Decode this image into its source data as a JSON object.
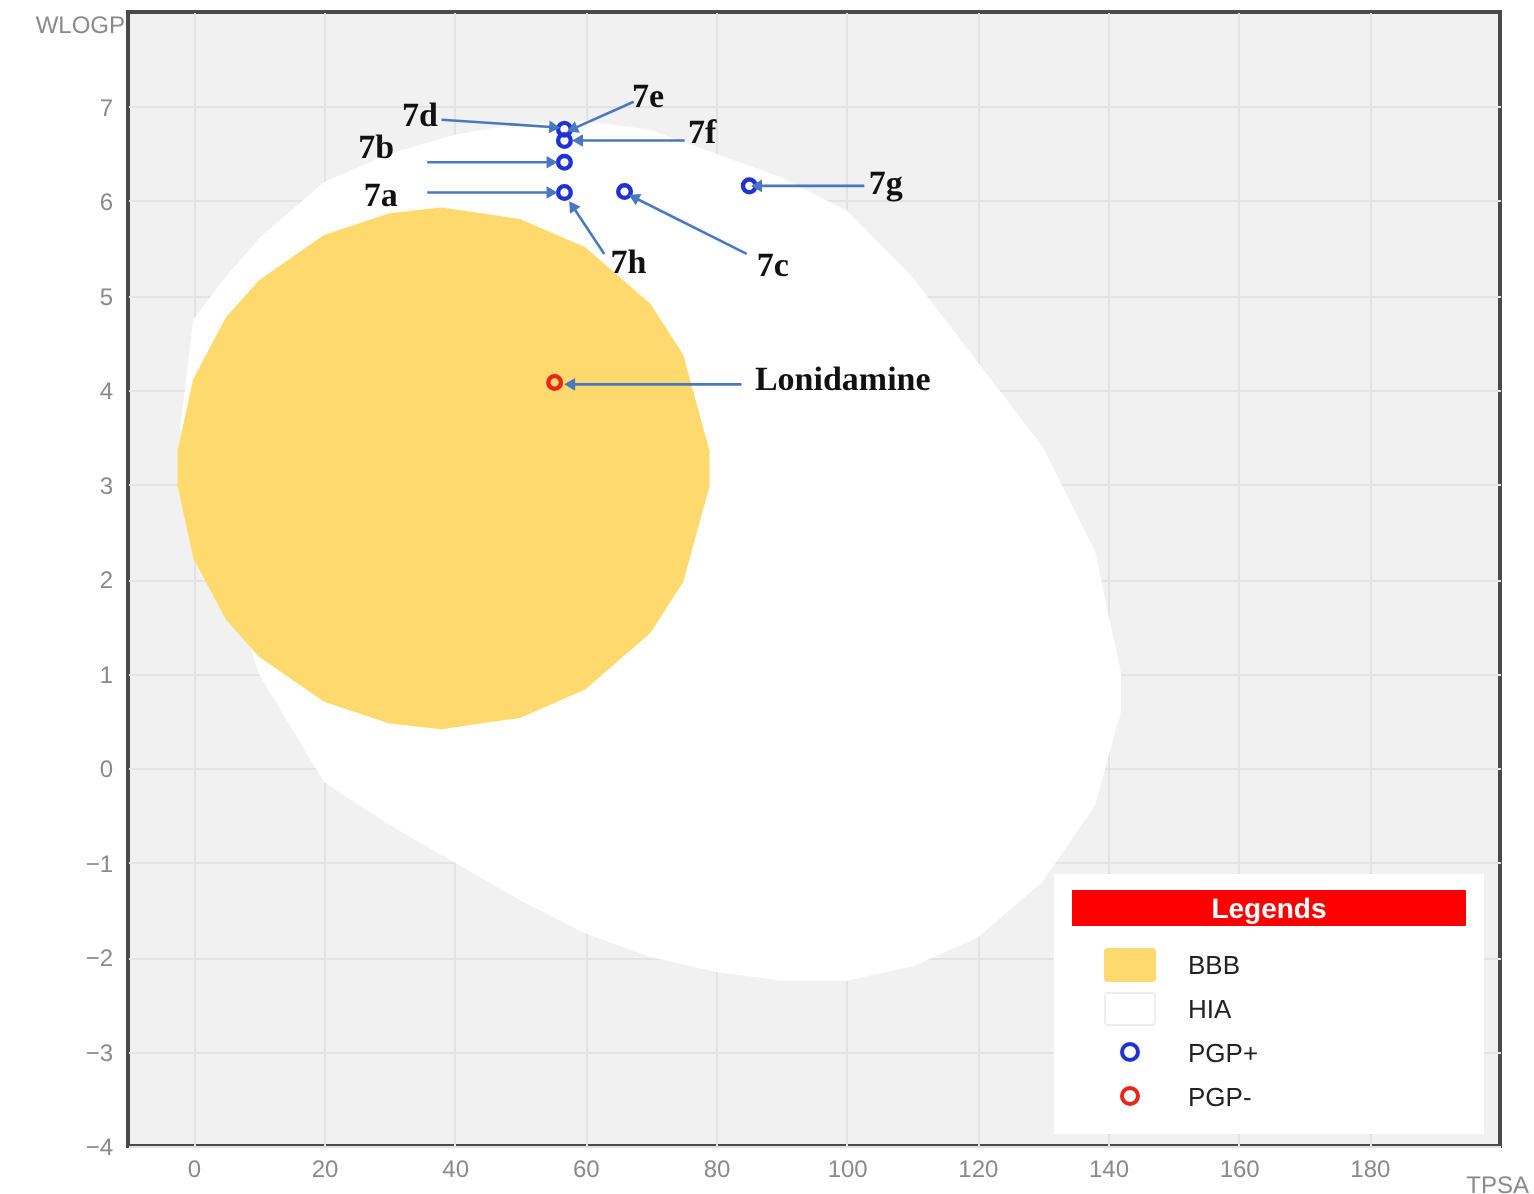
{
  "chart_data": {
    "type": "scatter",
    "xlabel": "TPSA",
    "ylabel": "WLOGP",
    "legend_title": "Legends",
    "xlim": [
      -10,
      200
    ],
    "ylim": [
      -4,
      8
    ],
    "xticks": [
      0,
      20,
      40,
      60,
      80,
      100,
      120,
      140,
      160,
      180
    ],
    "yticks": [
      -4,
      -3,
      -2,
      -1,
      0,
      1,
      2,
      3,
      4,
      5,
      6,
      7
    ],
    "grid": true,
    "legend": "bottom right",
    "series": [
      {
        "type": "area",
        "name": "BBB",
        "color": "#fdd96e",
        "x": [
          -2.4,
          0,
          5,
          10,
          20,
          30,
          38,
          50,
          60,
          70,
          75,
          79,
          79,
          75,
          70,
          60,
          50,
          38,
          30,
          20,
          10,
          5,
          0,
          -2.4
        ],
        "values": [
          3.36,
          4.12,
          4.77,
          5.16,
          5.64,
          5.87,
          5.93,
          5.81,
          5.51,
          4.91,
          4.37,
          3.36,
          2.98,
          1.97,
          1.43,
          0.83,
          0.53,
          0.41,
          0.47,
          0.7,
          1.18,
          1.57,
          2.22,
          2.98
        ]
      },
      {
        "type": "area",
        "name": "HIA",
        "color": "#ffffff",
        "x": [
          -2,
          0,
          5,
          10,
          20,
          30,
          40,
          50,
          60,
          70,
          80,
          90,
          100,
          110,
          120,
          130,
          138,
          142,
          142,
          138,
          130,
          120,
          110,
          100,
          90,
          80,
          70,
          60,
          50,
          40,
          30,
          20,
          10
        ],
        "values": [
          3.6,
          4.75,
          5.2,
          5.6,
          6.2,
          6.5,
          6.7,
          6.82,
          6.85,
          6.75,
          6.5,
          6.25,
          5.9,
          5.2,
          4.3,
          3.4,
          2.3,
          1.0,
          0.6,
          -0.4,
          -1.2,
          -1.8,
          -2.1,
          -2.25,
          -2.25,
          -2.16,
          -2.0,
          -1.75,
          -1.4,
          -1.0,
          -0.6,
          -0.15,
          1.0
        ]
      },
      {
        "type": "scatter",
        "name": "PGP+",
        "color": "#1f32d6",
        "marker": "circle",
        "x": [
          56.8,
          56.8,
          56.8,
          56.8,
          66.0,
          85.1
        ],
        "values": [
          6.76,
          6.64,
          6.41,
          6.09,
          6.1,
          6.16
        ]
      },
      {
        "type": "scatter",
        "name": "PGP-",
        "color": "#e8261c",
        "marker": "circle",
        "x": [
          55.3
        ],
        "values": [
          4.08
        ]
      }
    ],
    "annotations": [
      {
        "text": "7d",
        "x": 56.8,
        "y": 6.76
      },
      {
        "text": "7e",
        "x": 56.8,
        "y": 6.76
      },
      {
        "text": "7f",
        "x": 56.8,
        "y": 6.64
      },
      {
        "text": "7b",
        "x": 56.8,
        "y": 6.41
      },
      {
        "text": "7a",
        "x": 56.8,
        "y": 6.09
      },
      {
        "text": "7h",
        "x": 56.8,
        "y": 6.09
      },
      {
        "text": "7c",
        "x": 66.0,
        "y": 6.1
      },
      {
        "text": "7g",
        "x": 85.1,
        "y": 6.16
      },
      {
        "text": "Lonidamine",
        "x": 55.3,
        "y": 4.08
      }
    ]
  }
}
